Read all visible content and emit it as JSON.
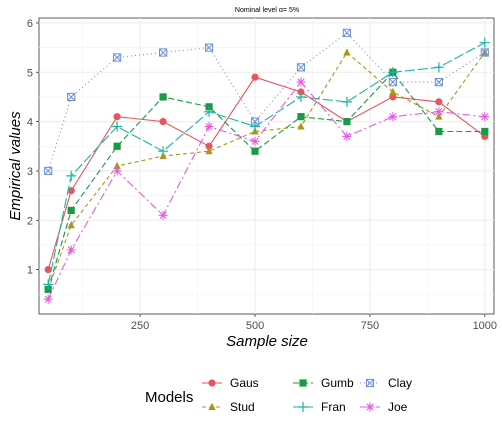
{
  "chart_data": {
    "type": "line",
    "title": "Nominal level α= 5%",
    "xlabel": "Sample size",
    "ylabel": "Empirical values",
    "xlim": [
      30,
      1020
    ],
    "ylim": [
      0.1,
      6.1
    ],
    "xticks": [
      250,
      500,
      750,
      1000
    ],
    "yticks": [
      1,
      2,
      3,
      4,
      5,
      6
    ],
    "grid": true,
    "legend_title": "Models",
    "legend_position": "bottom",
    "series": [
      {
        "name": "Gaus",
        "color": "#e6565f",
        "dash": "",
        "marker": "circle",
        "x": [
          50,
          100,
          200,
          300,
          400,
          500,
          600,
          700,
          800,
          900,
          1000
        ],
        "y": [
          1.0,
          2.6,
          4.1,
          4.0,
          3.5,
          4.9,
          4.6,
          4.0,
          4.5,
          4.4,
          3.7
        ]
      },
      {
        "name": "Stud",
        "color": "#a8971a",
        "dash": "4,3",
        "marker": "triangle",
        "x": [
          50,
          100,
          200,
          300,
          400,
          500,
          600,
          700,
          800,
          900,
          1000
        ],
        "y": [
          0.6,
          1.9,
          3.1,
          3.3,
          3.4,
          3.8,
          3.9,
          5.4,
          4.6,
          4.1,
          5.4
        ]
      },
      {
        "name": "Gumb",
        "color": "#1a9a46",
        "dash": "6,3",
        "marker": "square",
        "x": [
          50,
          100,
          200,
          300,
          400,
          500,
          600,
          700,
          800,
          900,
          1000
        ],
        "y": [
          0.6,
          2.2,
          3.5,
          4.5,
          4.3,
          3.4,
          4.1,
          4.0,
          5.0,
          3.8,
          3.8
        ]
      },
      {
        "name": "Fran",
        "color": "#19b5a6",
        "dash": "10,3",
        "marker": "plus",
        "x": [
          50,
          100,
          200,
          300,
          400,
          500,
          600,
          700,
          800,
          900,
          1000
        ],
        "y": [
          0.7,
          2.9,
          3.9,
          3.4,
          4.2,
          3.9,
          4.5,
          4.4,
          5.0,
          5.1,
          5.6
        ]
      },
      {
        "name": "Clay",
        "color": "#6e8fd8",
        "dash": "1,3",
        "marker": "boxx",
        "x": [
          50,
          100,
          200,
          300,
          400,
          500,
          600,
          700,
          800,
          900,
          1000
        ],
        "y": [
          3.0,
          4.5,
          5.3,
          5.4,
          5.5,
          4.0,
          5.1,
          5.8,
          4.8,
          4.8,
          5.4
        ]
      },
      {
        "name": "Joe",
        "color": "#e25ee0",
        "dash": "8,3,2,3",
        "marker": "star",
        "x": [
          50,
          100,
          200,
          300,
          400,
          500,
          600,
          700,
          800,
          900,
          1000
        ],
        "y": [
          0.4,
          1.4,
          3.0,
          2.1,
          3.9,
          3.6,
          4.8,
          3.7,
          4.1,
          4.2,
          4.1
        ]
      }
    ]
  }
}
